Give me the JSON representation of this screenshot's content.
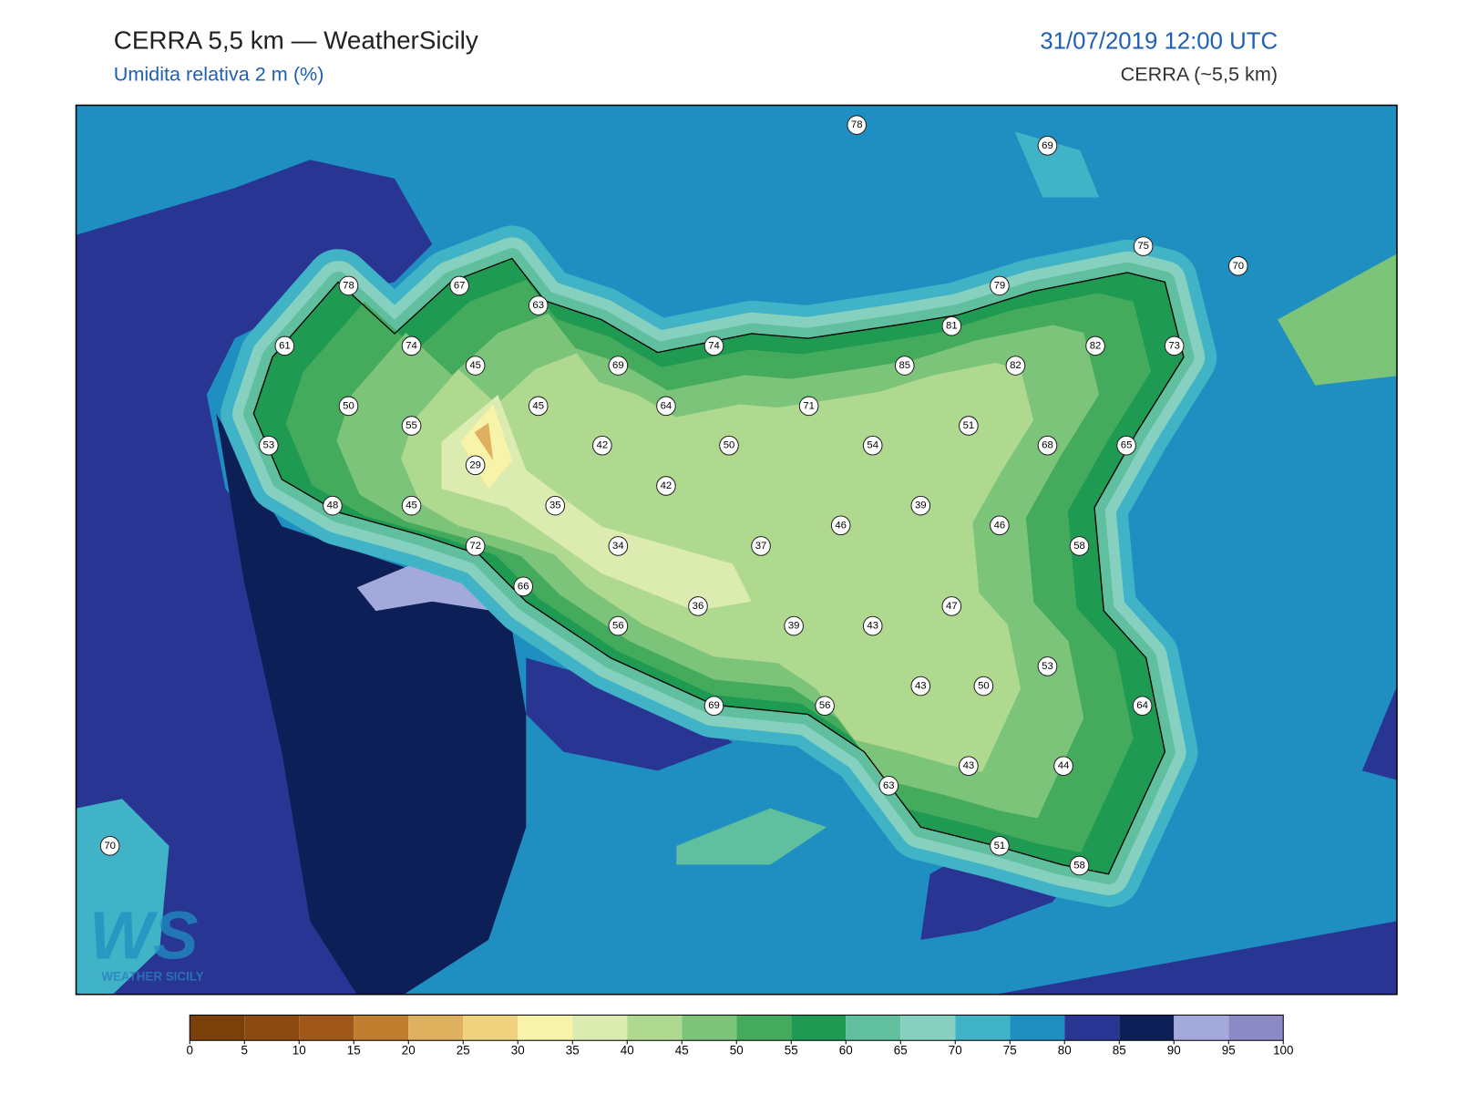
{
  "header": {
    "title": "CERRA 5,5 km — WeatherSicily",
    "subtitle": "Umidita relativa 2 m (%)",
    "datetime": "31/07/2019 12:00 UTC",
    "model": "CERRA (~5,5 km)"
  },
  "logo": {
    "mark": "WS",
    "text": "WEATHER SICILY"
  },
  "stations": [
    78,
    69,
    75,
    70,
    78,
    67,
    63,
    79,
    81,
    61,
    74,
    74,
    82,
    73,
    45,
    69,
    85,
    82,
    50,
    45,
    64,
    71,
    55,
    51,
    53,
    42,
    50,
    54,
    68,
    65,
    29,
    42,
    48,
    45,
    35,
    39,
    46,
    46,
    72,
    34,
    37,
    58,
    66,
    36,
    47,
    56,
    39,
    43,
    53,
    43,
    50,
    69,
    56,
    64,
    43,
    44,
    63,
    51,
    70,
    58
  ],
  "colorbar": {
    "ticks": [
      0,
      5,
      10,
      15,
      20,
      25,
      30,
      35,
      40,
      45,
      50,
      55,
      60,
      65,
      70,
      75,
      80,
      85,
      90,
      95,
      100
    ],
    "colors": [
      "#7b3f0a",
      "#8c4a10",
      "#a0581a",
      "#c07d2e",
      "#dfb05e",
      "#f0d27e",
      "#f7f3a8",
      "#dcebb0",
      "#aed98f",
      "#7cc47a",
      "#45ab5c",
      "#1f9a52",
      "#5fbf9f",
      "#86d0c0",
      "#41b3c6",
      "#1f8fc1",
      "#283593",
      "#0c1f57",
      "#a3aadb",
      "#8b89c6"
    ]
  }
}
